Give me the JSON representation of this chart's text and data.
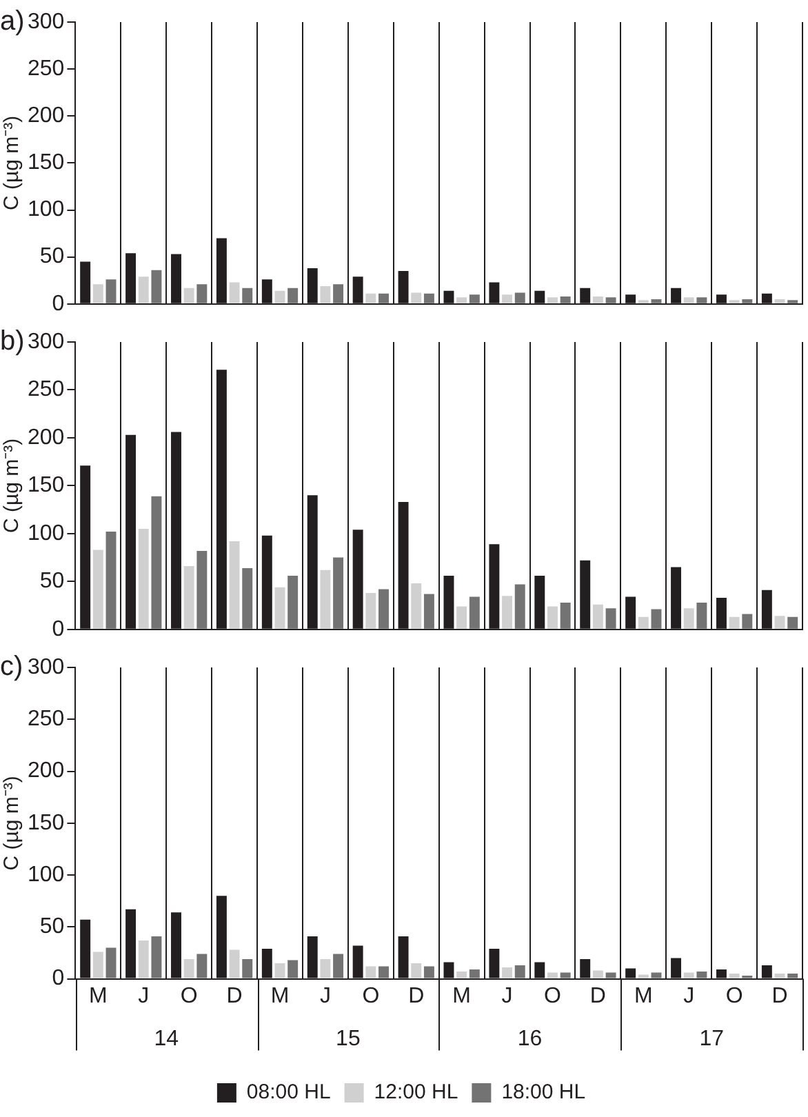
{
  "chart_data": [
    {
      "type": "bar",
      "title": "a)",
      "ylabel": "C (µg m⁻³)",
      "categories": [
        null,
        null,
        null,
        null,
        null,
        null,
        null,
        null,
        null,
        null,
        null,
        null,
        null,
        null,
        null,
        null
      ],
      "ylim": [
        0,
        300
      ],
      "yticks": [
        0,
        50,
        100,
        150,
        200,
        250,
        300
      ],
      "grid": "x",
      "legend": false,
      "tick_labels": "y",
      "series": [
        {
          "color": "#231f20",
          "values": [
            45,
            54,
            53,
            70,
            26,
            38,
            29,
            35,
            14,
            23,
            14,
            17,
            10,
            17,
            10,
            11
          ]
        },
        {
          "color": "#d0d0d0",
          "values": [
            21,
            29,
            17,
            23,
            14,
            19,
            11,
            12,
            7,
            10,
            7,
            8,
            4,
            7,
            4,
            5
          ]
        },
        {
          "color": "#737373",
          "values": [
            26,
            36,
            21,
            17,
            17,
            21,
            11,
            11,
            10,
            12,
            8,
            7,
            5,
            7,
            5,
            4
          ]
        }
      ]
    },
    {
      "type": "bar",
      "title": "b)",
      "ylabel": "C (µg m⁻³)",
      "categories": [
        null,
        null,
        null,
        null,
        null,
        null,
        null,
        null,
        null,
        null,
        null,
        null,
        null,
        null,
        null,
        null
      ],
      "ylim": [
        0,
        300
      ],
      "yticks": [
        0,
        50,
        100,
        150,
        200,
        250,
        300
      ],
      "grid": "x",
      "legend": false,
      "tick_labels": "y",
      "series": [
        {
          "color": "#231f20",
          "values": [
            171,
            203,
            206,
            271,
            98,
            140,
            104,
            133,
            56,
            89,
            56,
            72,
            34,
            65,
            33,
            41
          ]
        },
        {
          "color": "#d0d0d0",
          "values": [
            83,
            105,
            66,
            92,
            44,
            62,
            38,
            48,
            24,
            35,
            24,
            26,
            13,
            22,
            13,
            14
          ]
        },
        {
          "color": "#737373",
          "values": [
            102,
            139,
            82,
            64,
            56,
            75,
            42,
            37,
            34,
            47,
            28,
            22,
            21,
            28,
            16,
            13
          ]
        }
      ]
    },
    {
      "type": "bar",
      "title": "c)",
      "ylabel": "C (µg m⁻³)",
      "categories": [
        "M",
        "J",
        "O",
        "D",
        "M",
        "J",
        "O",
        "D",
        "M",
        "J",
        "O",
        "D",
        "M",
        "J",
        "O",
        "D"
      ],
      "ylim": [
        0,
        300
      ],
      "yticks": [
        0,
        50,
        100,
        150,
        200,
        250,
        300
      ],
      "grid": "x",
      "legend": "bottom",
      "annotations": [
        "14",
        "15",
        "16",
        "17"
      ],
      "series": [
        {
          "name": "08:00 HL",
          "color": "#231f20",
          "values": [
            57,
            67,
            64,
            80,
            29,
            41,
            32,
            41,
            16,
            29,
            16,
            19,
            10,
            20,
            9,
            13
          ]
        },
        {
          "name": "12:00 HL",
          "color": "#d0d0d0",
          "values": [
            26,
            37,
            19,
            28,
            15,
            19,
            12,
            15,
            7,
            11,
            6,
            8,
            4,
            6,
            5,
            5
          ]
        },
        {
          "name": "18:00 HL",
          "color": "#737373",
          "values": [
            30,
            41,
            24,
            19,
            18,
            24,
            12,
            12,
            9,
            13,
            6,
            6,
            6,
            7,
            3,
            5
          ]
        }
      ]
    }
  ]
}
